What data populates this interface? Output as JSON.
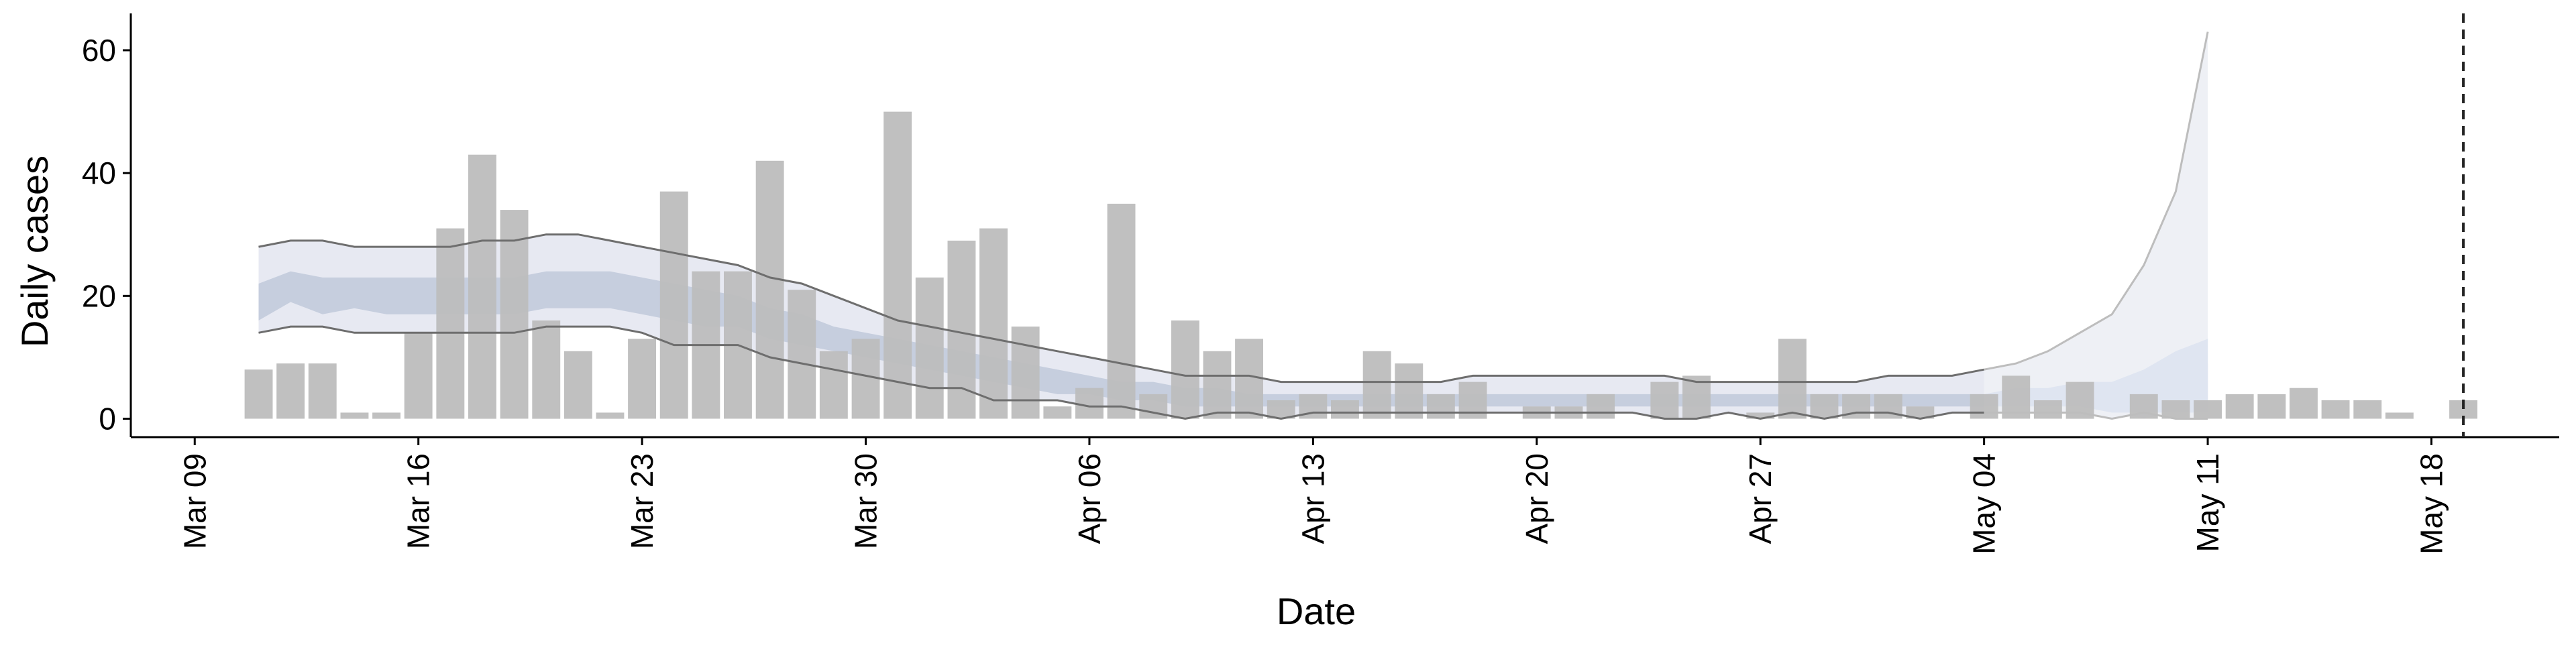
{
  "chart_data": {
    "type": "bar",
    "title": "",
    "xlabel": "Date",
    "ylabel": "Daily cases",
    "ylim": [
      -3,
      66
    ],
    "xlim": [
      "2020-03-07",
      "2020-05-22"
    ],
    "yticks": [
      0,
      20,
      40,
      60
    ],
    "xticks": [
      "Mar 09",
      "Mar 16",
      "Mar 23",
      "Mar 30",
      "Apr 06",
      "Apr 13",
      "Apr 20",
      "Apr 27",
      "May 04",
      "May 11",
      "May 18"
    ],
    "xtick_dates": [
      "2020-03-09",
      "2020-03-16",
      "2020-03-23",
      "2020-03-30",
      "2020-04-06",
      "2020-04-13",
      "2020-04-20",
      "2020-04-27",
      "2020-05-04",
      "2020-05-11",
      "2020-05-18"
    ],
    "grid": false,
    "vline_date": "2020-05-19",
    "bars": {
      "name": "Daily cases",
      "color": "#bdbdbd",
      "dates": [
        "2020-03-11",
        "2020-03-12",
        "2020-03-13",
        "2020-03-14",
        "2020-03-15",
        "2020-03-16",
        "2020-03-17",
        "2020-03-18",
        "2020-03-19",
        "2020-03-20",
        "2020-03-21",
        "2020-03-22",
        "2020-03-23",
        "2020-03-24",
        "2020-03-25",
        "2020-03-26",
        "2020-03-27",
        "2020-03-28",
        "2020-03-29",
        "2020-03-30",
        "2020-03-31",
        "2020-04-01",
        "2020-04-02",
        "2020-04-03",
        "2020-04-04",
        "2020-04-05",
        "2020-04-06",
        "2020-04-07",
        "2020-04-08",
        "2020-04-09",
        "2020-04-10",
        "2020-04-11",
        "2020-04-12",
        "2020-04-13",
        "2020-04-14",
        "2020-04-15",
        "2020-04-16",
        "2020-04-17",
        "2020-04-18",
        "2020-04-19",
        "2020-04-20",
        "2020-04-21",
        "2020-04-22",
        "2020-04-23",
        "2020-04-24",
        "2020-04-25",
        "2020-04-26",
        "2020-04-27",
        "2020-04-28",
        "2020-04-29",
        "2020-04-30",
        "2020-05-01",
        "2020-05-02",
        "2020-05-03",
        "2020-05-04",
        "2020-05-05",
        "2020-05-06",
        "2020-05-07",
        "2020-05-08",
        "2020-05-09",
        "2020-05-10",
        "2020-05-11",
        "2020-05-12",
        "2020-05-13",
        "2020-05-14",
        "2020-05-15",
        "2020-05-16",
        "2020-05-17",
        "2020-05-18",
        "2020-05-19"
      ],
      "values": [
        8,
        9,
        9,
        1,
        1,
        14,
        31,
        43,
        34,
        16,
        11,
        1,
        13,
        37,
        24,
        24,
        42,
        21,
        11,
        13,
        50,
        23,
        29,
        31,
        15,
        2,
        5,
        35,
        4,
        16,
        11,
        13,
        3,
        4,
        3,
        11,
        9,
        4,
        6,
        0,
        2,
        2,
        4,
        0,
        6,
        7,
        0,
        1,
        13,
        4,
        4,
        4,
        2,
        0,
        4,
        7,
        3,
        6,
        0,
        4,
        3,
        3,
        4,
        4,
        5,
        3,
        3,
        1,
        0,
        3
      ]
    },
    "estimate": {
      "dates": [
        "2020-03-11",
        "2020-03-12",
        "2020-03-13",
        "2020-03-14",
        "2020-03-15",
        "2020-03-16",
        "2020-03-17",
        "2020-03-18",
        "2020-03-19",
        "2020-03-20",
        "2020-03-21",
        "2020-03-22",
        "2020-03-23",
        "2020-03-24",
        "2020-03-25",
        "2020-03-26",
        "2020-03-27",
        "2020-03-28",
        "2020-03-29",
        "2020-03-30",
        "2020-03-31",
        "2020-04-01",
        "2020-04-02",
        "2020-04-03",
        "2020-04-04",
        "2020-04-05",
        "2020-04-06",
        "2020-04-07",
        "2020-04-08",
        "2020-04-09",
        "2020-04-10",
        "2020-04-11",
        "2020-04-12",
        "2020-04-13",
        "2020-04-14",
        "2020-04-15",
        "2020-04-16",
        "2020-04-17",
        "2020-04-18",
        "2020-04-19",
        "2020-04-20",
        "2020-04-21",
        "2020-04-22",
        "2020-04-23",
        "2020-04-24",
        "2020-04-25",
        "2020-04-26",
        "2020-04-27",
        "2020-04-28",
        "2020-04-29",
        "2020-04-30",
        "2020-05-01",
        "2020-05-02",
        "2020-05-03",
        "2020-05-04",
        "2020-05-05",
        "2020-05-06",
        "2020-05-07",
        "2020-05-08",
        "2020-05-09",
        "2020-05-10",
        "2020-05-11"
      ],
      "upper90": [
        28,
        29,
        29,
        28,
        28,
        28,
        28,
        29,
        29,
        30,
        30,
        29,
        28,
        27,
        26,
        25,
        23,
        22,
        20,
        18,
        16,
        15,
        14,
        13,
        12,
        11,
        10,
        9,
        8,
        7,
        7,
        7,
        6,
        6,
        6,
        6,
        6,
        6,
        7,
        7,
        7,
        7,
        7,
        7,
        7,
        6,
        6,
        6,
        6,
        6,
        6,
        7,
        7,
        7,
        8,
        8,
        9,
        11,
        14,
        17,
        25,
        37
      ],
      "upper50": [
        22,
        24,
        23,
        23,
        23,
        23,
        23,
        23,
        23,
        24,
        24,
        24,
        23,
        22,
        21,
        20,
        18,
        17,
        15,
        14,
        13,
        12,
        11,
        10,
        9,
        8,
        7,
        6,
        6,
        5,
        5,
        4,
        4,
        4,
        4,
        4,
        4,
        4,
        4,
        4,
        4,
        4,
        4,
        4,
        4,
        4,
        4,
        4,
        4,
        4,
        4,
        4,
        4,
        4,
        4,
        5,
        5,
        5,
        6,
        6,
        7,
        9
      ],
      "lower50": [
        16,
        19,
        17,
        18,
        17,
        17,
        17,
        17,
        17,
        18,
        18,
        18,
        17,
        16,
        15,
        15,
        13,
        12,
        11,
        10,
        9,
        8,
        7,
        6,
        5,
        4,
        4,
        3,
        3,
        2,
        2,
        2,
        2,
        2,
        2,
        2,
        2,
        2,
        2,
        2,
        2,
        2,
        2,
        2,
        2,
        2,
        2,
        2,
        2,
        2,
        2,
        2,
        2,
        2,
        2,
        2,
        2,
        2,
        1,
        1,
        1,
        1
      ],
      "lower90": [
        14,
        15,
        15,
        14,
        14,
        14,
        14,
        14,
        14,
        15,
        15,
        15,
        14,
        12,
        12,
        12,
        10,
        9,
        8,
        7,
        6,
        5,
        5,
        3,
        3,
        3,
        2,
        2,
        1,
        0,
        1,
        1,
        0,
        1,
        1,
        1,
        1,
        1,
        1,
        1,
        1,
        1,
        1,
        1,
        0,
        0,
        1,
        0,
        1,
        0,
        1,
        1,
        0,
        1,
        1,
        1,
        1,
        1,
        1,
        0,
        1,
        0
      ]
    },
    "forecast": {
      "dates": [
        "2020-05-04",
        "2020-05-05",
        "2020-05-06",
        "2020-05-07",
        "2020-05-08",
        "2020-05-09",
        "2020-05-10",
        "2020-05-11"
      ],
      "upper90": [
        8,
        9,
        11,
        14,
        17,
        25,
        37,
        63
      ],
      "upper50": [
        4,
        5,
        5,
        6,
        6,
        8,
        11,
        13
      ],
      "lower50": [
        2,
        2,
        2,
        2,
        1,
        1,
        1,
        1
      ],
      "lower90": [
        1,
        1,
        1,
        1,
        0,
        1,
        0,
        0
      ]
    },
    "colors": {
      "bars": "#bdbdbd",
      "band90": "#e7e9f2",
      "band50": "#c6cede",
      "edge_line": "#6e6e6e",
      "forecast_band90": "#eef0f5",
      "forecast_band50": "#dfe5f1",
      "forecast_edge": "#bdbdbd",
      "vline": "#222222"
    }
  }
}
